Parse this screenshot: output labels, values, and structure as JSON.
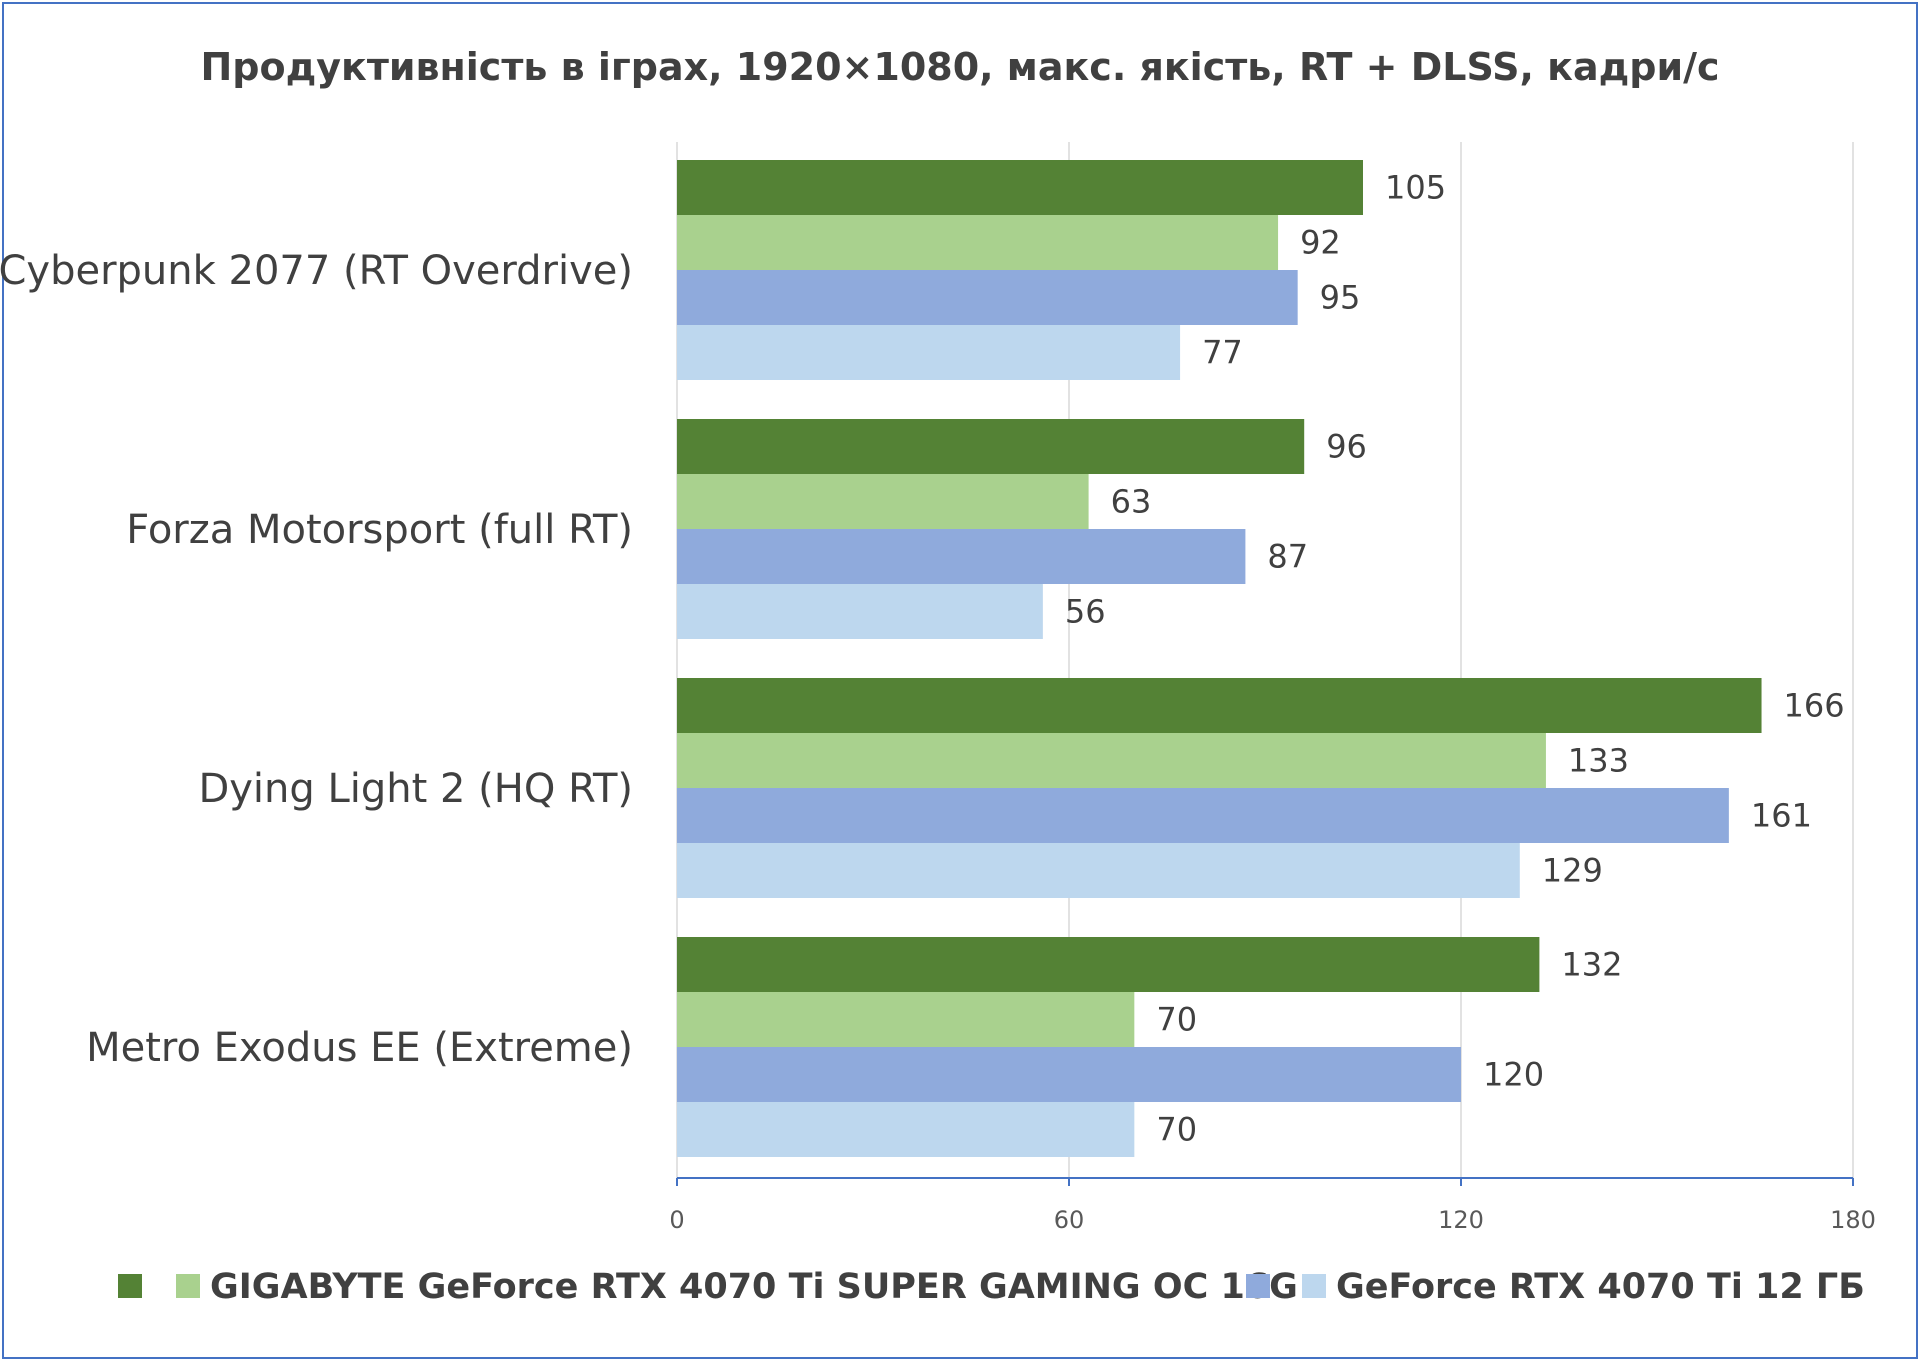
{
  "chart_data": {
    "type": "bar",
    "orientation": "horizontal",
    "title": "Продуктивність в іграх, 1920×1080, макс. якість, RT + DLSS, кадри/с",
    "categories": [
      "Cyberpunk 2077 (RT Overdrive)",
      "Forza Motorsport (full RT)",
      "Dying Light 2 (HQ RT)",
      "Metro Exodus EE (Extreme)"
    ],
    "series": [
      {
        "name": "",
        "color": "#548235",
        "values": [
          105,
          96,
          166,
          132
        ]
      },
      {
        "name": "GIGABYTE GeForce RTX 4070 Ti SUPER GAMING OC 16G",
        "color": "#a9d18e",
        "values": [
          92,
          63,
          133,
          70
        ]
      },
      {
        "name": "",
        "color": "#8faadc",
        "values": [
          95,
          87,
          161,
          120
        ]
      },
      {
        "name": "GeForce RTX 4070 Ti 12 ГБ",
        "color": "#bdd7ee",
        "values": [
          77,
          56,
          129,
          70
        ]
      }
    ],
    "xlim": [
      0,
      180
    ],
    "xticks": [
      0,
      60,
      120,
      180
    ],
    "grid": true,
    "legend_position": "bottom"
  }
}
